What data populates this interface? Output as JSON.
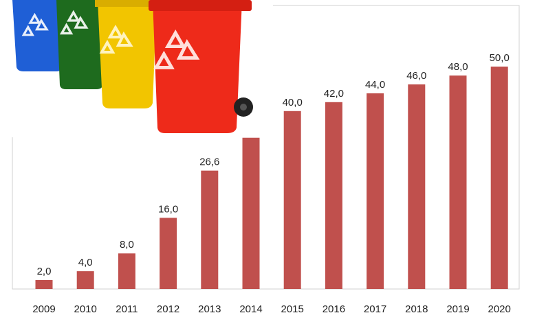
{
  "chart_data": {
    "type": "bar",
    "title": "",
    "xlabel": "",
    "ylabel": "",
    "categories": [
      "2009",
      "2010",
      "2011",
      "2012",
      "2013",
      "2014",
      "2015",
      "2016",
      "2017",
      "2018",
      "2019",
      "2020"
    ],
    "values": [
      2.0,
      4.0,
      8.0,
      16.0,
      26.6,
      34.0,
      40.0,
      42.0,
      44.0,
      46.0,
      48.0,
      50.0
    ],
    "value_labels": [
      "2,0",
      "4,0",
      "8,0",
      "16,0",
      "26,6",
      "",
      "40,0",
      "42,0",
      "44,0",
      "46,0",
      "48,0",
      "50,0"
    ],
    "ylim": [
      0,
      54
    ],
    "grid": false,
    "legend": "none",
    "bar_color": "#c0504d"
  },
  "illustration": {
    "name": "recycling-bins",
    "bin_colors": [
      "#1f5fd6",
      "#1e6b1e",
      "#f2c500",
      "#ee2a1a"
    ],
    "wheel_color": "#222222"
  }
}
